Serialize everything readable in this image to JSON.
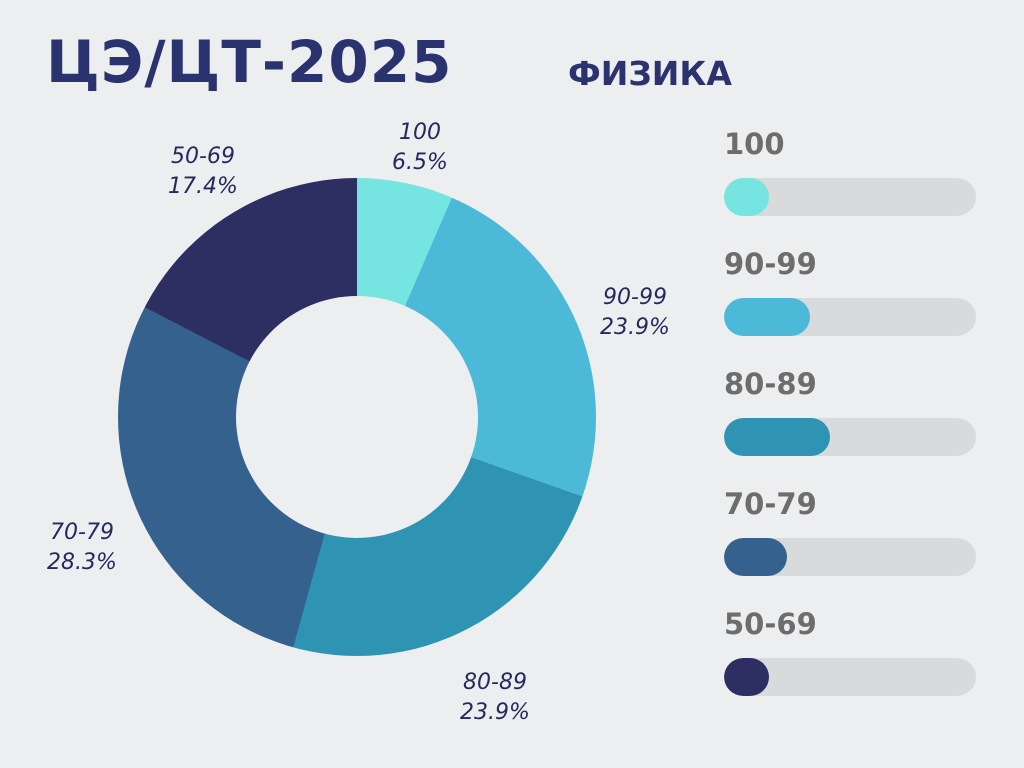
{
  "page": {
    "title": "ЦЭ/ЦТ-2025",
    "subtitle": "ФИЗИКА",
    "background_color": "#eceef0",
    "title_color": "#2b3270",
    "label_color": "#232a5c",
    "legend_label_color": "#6d6d6d",
    "legend_track_color": "#d8dadc"
  },
  "chart_data": {
    "type": "pie",
    "title": "ЦЭ/ЦТ-2025",
    "subtitle": "ФИЗИКА",
    "donut": true,
    "start_angle_deg": 0,
    "direction": "clockwise",
    "categories": [
      "100",
      "90-99",
      "80-89",
      "70-79",
      "50-69"
    ],
    "values": [
      6.5,
      23.9,
      23.9,
      28.3,
      17.4
    ],
    "unit": "%",
    "percent_labels": [
      "6.5%",
      "23.9%",
      "23.9%",
      "28.3%",
      "17.4%"
    ],
    "colors": [
      "#76e4e0",
      "#4cb9d8",
      "#2f93b4",
      "#35618e",
      "#2d2f63"
    ],
    "legend_position": "right",
    "legend": [
      {
        "label": "100",
        "color": "#76e4e0",
        "bar_fill_percent": 18
      },
      {
        "label": "90-99",
        "color": "#4cb9d8",
        "bar_fill_percent": 34
      },
      {
        "label": "80-89",
        "color": "#2f93b4",
        "bar_fill_percent": 42
      },
      {
        "label": "70-79",
        "color": "#35618e",
        "bar_fill_percent": 25
      },
      {
        "label": "50-69",
        "color": "#2d2f63",
        "bar_fill_percent": 18
      }
    ]
  }
}
